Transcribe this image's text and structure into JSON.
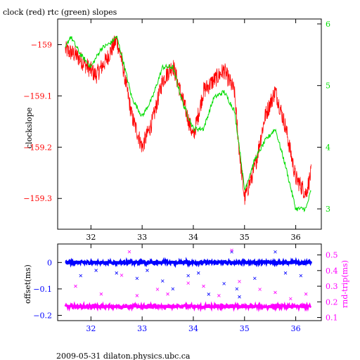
{
  "title": "clock (red) rtc (green) slopes",
  "footer": "2009-05-31 dilaton.physics.ubc.ca",
  "colors": {
    "clock": "#ff0000",
    "rtc": "#00dd00",
    "offset": "#0000ff",
    "roundtrip": "#ff00ff",
    "axis": "#000000"
  },
  "chart_data": [
    {
      "type": "line",
      "ylabel": "clockslope",
      "y2label": "",
      "xlim": [
        31.35,
        36.5
      ],
      "ylim": [
        -159.36,
        -158.95
      ],
      "y2lim": [
        2.67,
        6.08
      ],
      "xticks": [
        32,
        33,
        34,
        35,
        36
      ],
      "yticks": [
        -159.3,
        -159.2,
        -159.1,
        -159.0
      ],
      "ytick_labels": [
        "−159.3",
        "−159.2",
        "−159.1",
        "−159"
      ],
      "y2ticks": [
        3,
        4,
        5,
        6
      ],
      "series": [
        {
          "name": "clock",
          "axis": "left",
          "x": [
            31.5,
            31.7,
            31.9,
            32.1,
            32.3,
            32.5,
            32.6,
            32.8,
            33.0,
            33.2,
            33.4,
            33.6,
            33.8,
            34.0,
            34.2,
            34.4,
            34.6,
            34.8,
            34.9,
            35.0,
            35.2,
            35.4,
            35.6,
            35.8,
            36.0,
            36.2,
            36.3
          ],
          "y": [
            -159.01,
            -159.02,
            -159.04,
            -159.06,
            -159.03,
            -158.99,
            -159.03,
            -159.14,
            -159.2,
            -159.15,
            -159.07,
            -159.04,
            -159.11,
            -159.18,
            -159.09,
            -159.07,
            -159.05,
            -159.09,
            -159.21,
            -159.3,
            -159.24,
            -159.14,
            -159.09,
            -159.16,
            -159.26,
            -159.29,
            -159.25
          ]
        },
        {
          "name": "rtc",
          "axis": "right",
          "x": [
            31.5,
            31.6,
            31.8,
            32.0,
            32.2,
            32.4,
            32.5,
            32.6,
            32.8,
            33.0,
            33.2,
            33.4,
            33.6,
            33.8,
            34.0,
            34.2,
            34.4,
            34.6,
            34.8,
            34.9,
            35.0,
            35.2,
            35.4,
            35.6,
            35.8,
            36.0,
            36.2,
            36.3
          ],
          "y": [
            5.6,
            5.8,
            5.5,
            5.3,
            5.6,
            5.7,
            5.8,
            5.5,
            4.8,
            4.5,
            4.8,
            5.3,
            5.3,
            4.7,
            4.3,
            4.3,
            4.8,
            4.9,
            4.6,
            4.0,
            3.3,
            3.8,
            4.1,
            4.3,
            3.7,
            3.0,
            3.0,
            3.3
          ]
        }
      ]
    },
    {
      "type": "scatter",
      "ylabel": "offset(ms)",
      "y2label": "rnd-trip(ms)",
      "xlim": [
        31.35,
        36.5
      ],
      "ylim": [
        -0.22,
        0.07
      ],
      "y2lim": [
        0.08,
        0.57
      ],
      "xticks": [
        32,
        33,
        34,
        35,
        36
      ],
      "yticks": [
        -0.2,
        -0.1,
        0
      ],
      "ytick_labels": [
        "−0.2",
        "−0.1",
        "0"
      ],
      "y2ticks": [
        0.1,
        0.2,
        0.3,
        0.4,
        0.5
      ],
      "series": [
        {
          "name": "offset",
          "axis": "left",
          "band": 0.0,
          "outliers": [
            [
              31.8,
              -0.05
            ],
            [
              32.1,
              -0.03
            ],
            [
              32.5,
              -0.04
            ],
            [
              32.9,
              -0.06
            ],
            [
              33.1,
              -0.03
            ],
            [
              33.4,
              -0.07
            ],
            [
              33.6,
              -0.1
            ],
            [
              33.9,
              -0.05
            ],
            [
              34.1,
              -0.04
            ],
            [
              34.3,
              -0.12
            ],
            [
              34.6,
              -0.08
            ],
            [
              34.75,
              0.04
            ],
            [
              34.85,
              -0.1
            ],
            [
              34.9,
              -0.13
            ],
            [
              35.2,
              -0.06
            ],
            [
              35.6,
              0.04
            ],
            [
              35.8,
              -0.04
            ],
            [
              36.1,
              -0.05
            ]
          ]
        },
        {
          "name": "rnd-trip",
          "axis": "right",
          "band": 0.17,
          "outliers": [
            [
              31.7,
              0.3
            ],
            [
              32.2,
              0.25
            ],
            [
              32.6,
              0.37
            ],
            [
              32.75,
              0.52
            ],
            [
              32.9,
              0.24
            ],
            [
              33.3,
              0.28
            ],
            [
              33.5,
              0.25
            ],
            [
              33.9,
              0.32
            ],
            [
              34.2,
              0.3
            ],
            [
              34.5,
              0.24
            ],
            [
              34.75,
              0.53
            ],
            [
              34.9,
              0.33
            ],
            [
              35.3,
              0.28
            ],
            [
              35.6,
              0.26
            ],
            [
              35.9,
              0.22
            ],
            [
              36.2,
              0.25
            ]
          ]
        }
      ]
    }
  ]
}
